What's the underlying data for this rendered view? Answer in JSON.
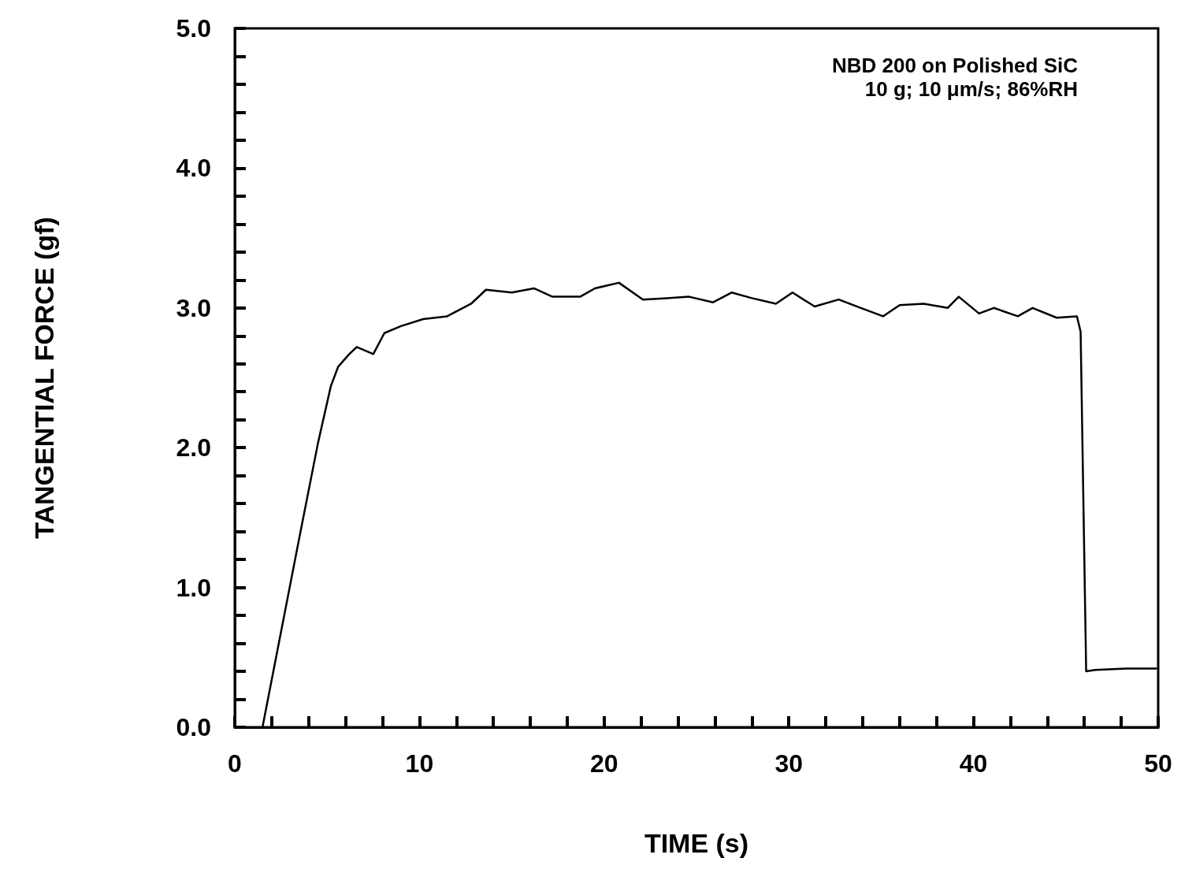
{
  "chart_data": {
    "type": "line",
    "xlabel": "TIME (s)",
    "ylabel": "TANGENTIAL FORCE (gf)",
    "annotations": [
      "NBD 200 on Polished SiC",
      "10 g; 10 μm/s; 86%RH"
    ],
    "xlim": [
      0,
      50
    ],
    "ylim": [
      0,
      5
    ],
    "xticks": [
      0,
      {
        "value": 2,
        "label": null
      },
      {
        "value": 4,
        "label": null
      },
      {
        "value": 6,
        "label": null
      },
      {
        "value": 8,
        "label": null
      },
      10,
      {
        "value": 12,
        "label": null
      },
      {
        "value": 14,
        "label": null
      },
      {
        "value": 16,
        "label": null
      },
      {
        "value": 18,
        "label": null
      },
      20,
      {
        "value": 22,
        "label": null
      },
      {
        "value": 24,
        "label": null
      },
      {
        "value": 26,
        "label": null
      },
      {
        "value": 28,
        "label": null
      },
      30,
      {
        "value": 32,
        "label": null
      },
      {
        "value": 34,
        "label": null
      },
      {
        "value": 36,
        "label": null
      },
      {
        "value": 38,
        "label": null
      },
      40,
      {
        "value": 42,
        "label": null
      },
      {
        "value": 44,
        "label": null
      },
      {
        "value": 46,
        "label": null
      },
      {
        "value": 48,
        "label": null
      },
      50
    ],
    "yticks": [
      {
        "value": 0,
        "label": "0.0"
      },
      {
        "value": 0.2,
        "label": null
      },
      {
        "value": 0.4,
        "label": null
      },
      {
        "value": 0.6,
        "label": null
      },
      {
        "value": 0.8,
        "label": null
      },
      {
        "value": 1,
        "label": "1.0"
      },
      {
        "value": 1.2,
        "label": null
      },
      {
        "value": 1.4,
        "label": null
      },
      {
        "value": 1.6,
        "label": null
      },
      {
        "value": 1.8,
        "label": null
      },
      {
        "value": 2,
        "label": "2.0"
      },
      {
        "value": 2.2,
        "label": null
      },
      {
        "value": 2.4,
        "label": null
      },
      {
        "value": 2.6,
        "label": null
      },
      {
        "value": 2.8,
        "label": null
      },
      {
        "value": 3,
        "label": "3.0"
      },
      {
        "value": 3.2,
        "label": null
      },
      {
        "value": 3.4,
        "label": null
      },
      {
        "value": 3.6,
        "label": null
      },
      {
        "value": 3.8,
        "label": null
      },
      {
        "value": 4,
        "label": "4.0"
      },
      {
        "value": 4.2,
        "label": null
      },
      {
        "value": 4.4,
        "label": null
      },
      {
        "value": 4.6,
        "label": null
      },
      {
        "value": 4.8,
        "label": null
      },
      {
        "value": 5,
        "label": "5.0"
      }
    ],
    "grid": false,
    "marker": "none",
    "line_style": "solid",
    "series": [
      {
        "color": "#000000",
        "x": [
          1.5,
          3.5,
          4.5,
          5.2,
          5.6,
          6.2,
          6.6,
          7.5,
          8.1,
          9.0,
          10.2,
          11.5,
          12.8,
          13.6,
          15,
          16.2,
          17.2,
          18.7,
          19.5,
          20.8,
          22.1,
          23.4,
          24.6,
          25.9,
          26.9,
          28,
          29.3,
          30.2,
          31.4,
          32.7,
          33.9,
          35.1,
          36,
          37.3,
          38.6,
          39.2,
          40.3,
          41.1,
          42.4,
          43.2,
          44.5,
          45.6,
          45.8,
          46.1,
          46.6,
          48.3,
          49.9
        ],
        "values": [
          0,
          1.36,
          2.03,
          2.44,
          2.58,
          2.67,
          2.72,
          2.67,
          2.82,
          2.87,
          2.92,
          2.94,
          3.03,
          3.13,
          3.11,
          3.14,
          3.08,
          3.08,
          3.14,
          3.18,
          3.06,
          3.07,
          3.08,
          3.04,
          3.11,
          3.07,
          3.03,
          3.11,
          3.01,
          3.06,
          3.0,
          2.94,
          3.02,
          3.03,
          3.0,
          3.08,
          2.96,
          3.0,
          2.94,
          3.0,
          2.93,
          2.94,
          2.83,
          0.4,
          0.41,
          0.42,
          0.42
        ]
      }
    ]
  }
}
